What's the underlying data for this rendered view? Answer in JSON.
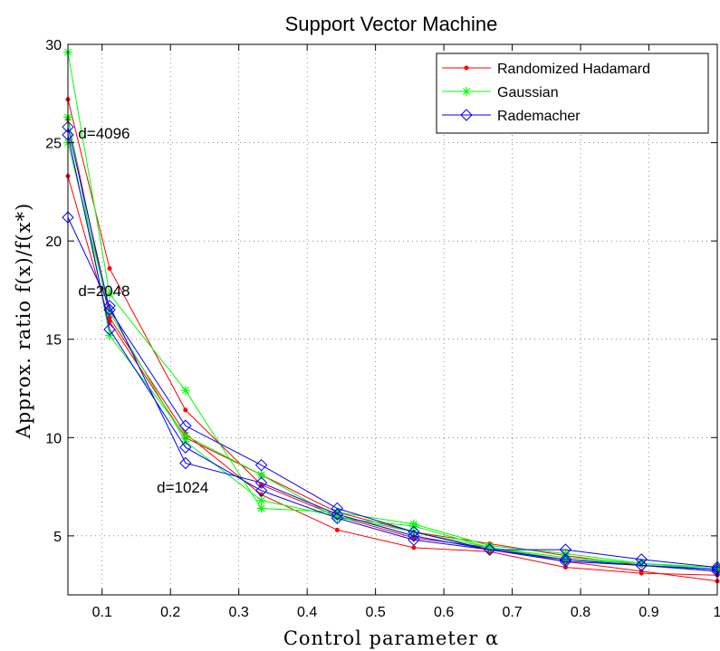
{
  "chart_data": {
    "type": "line",
    "title": "Support Vector Machine",
    "xlabel": "Control parameter α",
    "ylabel": "Approx. ratio f(x)/f(x*)",
    "xlim": [
      0.05,
      1
    ],
    "ylim": [
      2,
      30
    ],
    "xticks": [
      0.1,
      0.2,
      0.3,
      0.4,
      0.5,
      0.6,
      0.7,
      0.8,
      0.9,
      1
    ],
    "xtick_labels": [
      "0.1",
      "0.2",
      "0.3",
      "0.4",
      "0.5",
      "0.6",
      "0.7",
      "0.8",
      "0.9",
      "1"
    ],
    "yticks": [
      5,
      10,
      15,
      20,
      25,
      30
    ],
    "ytick_labels": [
      "5",
      "10",
      "15",
      "20",
      "25",
      "30"
    ],
    "grid": true,
    "legend_position": "top-right",
    "legend": [
      {
        "name": "Randomized Hadamard",
        "color": "#ff0000",
        "marker": "dot"
      },
      {
        "name": "Gaussian",
        "color": "#00ff00",
        "marker": "asterisk"
      },
      {
        "name": "Rademacher",
        "color": "#0000ff",
        "marker": "diamond"
      }
    ],
    "annotations": [
      {
        "text": "d=4096",
        "x": 0.065,
        "y": 25.2
      },
      {
        "text": "d=2048",
        "x": 0.065,
        "y": 17.2
      },
      {
        "text": "d=1024",
        "x": 0.18,
        "y": 7.2
      }
    ],
    "x": [
      0.05,
      0.111,
      0.222,
      0.333,
      0.444,
      0.556,
      0.667,
      0.778,
      0.889,
      1.0
    ],
    "series": [
      {
        "legend_index": 0,
        "color": "#ff0000",
        "marker": "dot",
        "values": [
          27.2,
          18.6,
          11.4,
          7.6,
          6.0,
          4.9,
          4.4,
          3.7,
          3.2,
          2.7
        ]
      },
      {
        "legend_index": 0,
        "color": "#ff0000",
        "marker": "dot",
        "values": [
          26.2,
          16.1,
          10.2,
          7.1,
          5.3,
          4.4,
          4.2,
          3.4,
          3.1,
          3.0
        ]
      },
      {
        "legend_index": 0,
        "color": "#ff0000",
        "marker": "dot",
        "values": [
          23.3,
          15.9,
          10.0,
          8.1,
          6.2,
          5.2,
          4.6,
          4.0,
          3.5,
          3.2
        ]
      },
      {
        "legend_index": 1,
        "color": "#00ff00",
        "marker": "asterisk",
        "values": [
          29.6,
          17.3,
          12.4,
          6.4,
          6.2,
          5.6,
          4.5,
          4.1,
          3.6,
          3.3
        ]
      },
      {
        "legend_index": 1,
        "color": "#00ff00",
        "marker": "asterisk",
        "values": [
          26.3,
          15.2,
          10.1,
          8.1,
          5.9,
          5.5,
          4.4,
          3.9,
          3.6,
          3.3
        ]
      },
      {
        "legend_index": 1,
        "color": "#00ff00",
        "marker": "asterisk",
        "values": [
          25.0,
          16.4,
          9.8,
          6.8,
          6.0,
          5.2,
          4.4,
          3.8,
          3.6,
          3.4
        ]
      },
      {
        "legend_index": 2,
        "color": "#0000ff",
        "marker": "diamond",
        "values": [
          25.8,
          16.5,
          10.6,
          8.6,
          6.4,
          5.2,
          4.3,
          4.3,
          3.8,
          3.4
        ]
      },
      {
        "legend_index": 2,
        "color": "#0000ff",
        "marker": "diamond",
        "values": [
          25.4,
          15.5,
          9.5,
          7.3,
          5.9,
          4.8,
          4.3,
          3.7,
          3.5,
          3.2
        ]
      },
      {
        "legend_index": 2,
        "color": "#0000ff",
        "marker": "diamond",
        "values": [
          21.2,
          16.7,
          8.7,
          7.7,
          6.1,
          5.0,
          4.3,
          3.8,
          3.5,
          3.3
        ]
      }
    ]
  }
}
